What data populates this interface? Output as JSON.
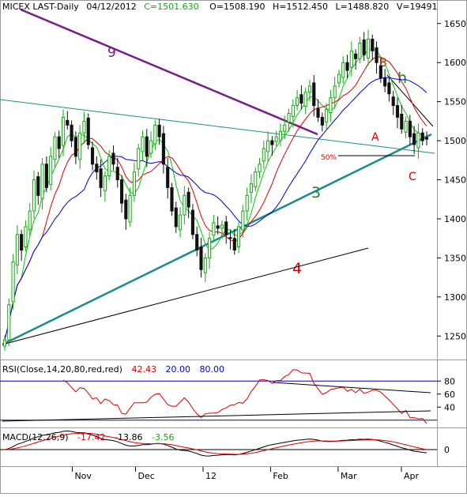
{
  "header": {
    "symbol": "MICEX LAST-Daily",
    "date": "04/12/2012",
    "close": "C=1501.630",
    "open": "O=1508.190",
    "high": "H=1512.450",
    "low": "L=1488.820",
    "volume": "V=19491"
  },
  "colors": {
    "bull": "#11aa11",
    "bear": "#111111",
    "ma_fast": "#00cc00",
    "ma_mid": "#dd0000",
    "ma_slow": "#0000cc",
    "trend_9": "#7a1a8a",
    "trend_3": "#1a8c8c",
    "trend_4": "#000000",
    "rsi": "#dd0000",
    "macd": "#000000",
    "signal": "#dd0000",
    "guide": "#0000aa"
  },
  "annotations": {
    "line_9": "9",
    "line_3": "3",
    "line_4": "4",
    "wave_a": "A",
    "wave_b": "B",
    "wave_c": "C",
    "wave_h": "h",
    "fib": "50%"
  },
  "rsi_panel": {
    "label": "RSI(Close,14,20,80,red,red)",
    "value": "42.43",
    "lower": "20.00",
    "upper": "80.00",
    "ticks": [
      "80",
      "60",
      "40"
    ]
  },
  "macd_panel": {
    "label": "MACD(12,26,9)",
    "macd": "-17.42",
    "signal": "-13.86",
    "hist": "-3.56",
    "ticks": [
      "0"
    ]
  },
  "chart_data": {
    "type": "candlestick",
    "x_labels": [
      "Nov",
      "Dec",
      "12",
      "Feb",
      "Mar",
      "Apr"
    ],
    "y_ticks": [
      1250,
      1300,
      1350,
      1400,
      1450,
      1500,
      1550,
      1600,
      1650
    ],
    "ylim": [
      1225,
      1670
    ],
    "grid": false,
    "series": [
      {
        "name": "close",
        "type": "candlestick",
        "values": [
          1245,
          1290,
          1345,
          1380,
          1360,
          1390,
          1410,
          1450,
          1430,
          1470,
          1440,
          1480,
          1505,
          1490,
          1530,
          1520,
          1500,
          1480,
          1510,
          1525,
          1495,
          1470,
          1460,
          1440,
          1455,
          1480,
          1470,
          1450,
          1420,
          1400,
          1430,
          1460,
          1490,
          1505,
          1480,
          1500,
          1520,
          1505,
          1470,
          1440,
          1410,
          1390,
          1405,
          1430,
          1415,
          1380,
          1360,
          1335,
          1350,
          1375,
          1395,
          1388,
          1392,
          1380,
          1375,
          1360,
          1390,
          1410,
          1430,
          1445,
          1460,
          1470,
          1490,
          1500,
          1495,
          1505,
          1512,
          1520,
          1535,
          1545,
          1555,
          1548,
          1562,
          1570,
          1545,
          1530,
          1520,
          1540,
          1555,
          1570,
          1585,
          1600,
          1590,
          1615,
          1605,
          1625,
          1610,
          1630,
          1615,
          1600,
          1580,
          1570,
          1560,
          1545,
          1530,
          1515,
          1525,
          1505,
          1495,
          1510,
          1500,
          1502
        ]
      }
    ]
  }
}
